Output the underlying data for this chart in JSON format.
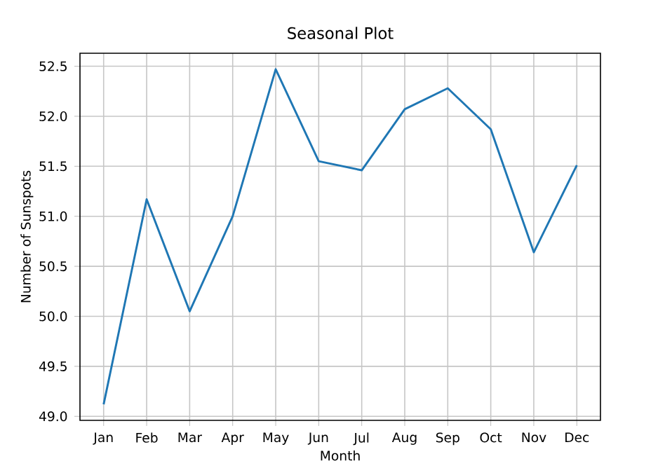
{
  "chart_data": {
    "type": "line",
    "title": "Seasonal Plot",
    "xlabel": "Month",
    "ylabel": "Number of Sunspots",
    "categories": [
      "Jan",
      "Feb",
      "Mar",
      "Apr",
      "May",
      "Jun",
      "Jul",
      "Aug",
      "Sep",
      "Oct",
      "Nov",
      "Dec"
    ],
    "series": [
      {
        "color": "#1f77b4",
        "values": [
          49.12,
          51.17,
          50.05,
          51.0,
          52.47,
          51.55,
          51.46,
          52.07,
          52.28,
          51.87,
          50.64,
          51.51
        ]
      }
    ],
    "ylim": [
      48.96,
      52.63
    ],
    "yticks": [
      {
        "value": 49,
        "label": "49.0"
      },
      49.5,
      {
        "value": 50,
        "label": "50.0"
      },
      50.5,
      {
        "value": 51,
        "label": "51.0"
      },
      51.5,
      {
        "value": 52,
        "label": "52.0"
      },
      52.5
    ],
    "grid": true
  }
}
